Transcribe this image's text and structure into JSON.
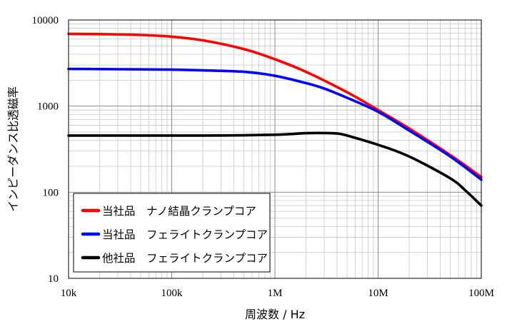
{
  "chart_data": {
    "type": "line",
    "title": "",
    "xlabel": "周波数 / Hz",
    "ylabel": "インピーダンス比透磁率",
    "xscale": "log",
    "yscale": "log",
    "xlim": [
      10000,
      100000000
    ],
    "ylim": [
      10,
      10000
    ],
    "grid": true,
    "legend_position": "bottom-left",
    "x_ticks": [
      {
        "value": 10000,
        "label": "10k"
      },
      {
        "value": 100000,
        "label": "100k"
      },
      {
        "value": 1000000,
        "label": "1M"
      },
      {
        "value": 10000000,
        "label": "10M"
      },
      {
        "value": 100000000,
        "label": "100M"
      }
    ],
    "y_ticks": [
      {
        "value": 10,
        "label": "10"
      },
      {
        "value": 100,
        "label": "100"
      },
      {
        "value": 1000,
        "label": "1000"
      },
      {
        "value": 10000,
        "label": "10000"
      }
    ],
    "series": [
      {
        "name": "当社品　ナノ結晶クランプコア",
        "color": "#ff0000",
        "points": [
          [
            10000,
            6900
          ],
          [
            20000,
            6850
          ],
          [
            50000,
            6700
          ],
          [
            100000,
            6400
          ],
          [
            200000,
            5800
          ],
          [
            500000,
            4600
          ],
          [
            1000000,
            3500
          ],
          [
            2000000,
            2500
          ],
          [
            5000000,
            1450
          ],
          [
            10000000,
            900
          ],
          [
            20000000,
            550
          ],
          [
            50000000,
            270
          ],
          [
            100000000,
            150
          ]
        ]
      },
      {
        "name": "当社品　フェライトクランプコア",
        "color": "#0000ff",
        "points": [
          [
            10000,
            2700
          ],
          [
            20000,
            2690
          ],
          [
            50000,
            2670
          ],
          [
            100000,
            2650
          ],
          [
            200000,
            2600
          ],
          [
            500000,
            2500
          ],
          [
            1000000,
            2250
          ],
          [
            2000000,
            1850
          ],
          [
            3000000,
            1600
          ],
          [
            5000000,
            1250
          ],
          [
            10000000,
            860
          ],
          [
            20000000,
            520
          ],
          [
            50000000,
            260
          ],
          [
            100000000,
            140
          ]
        ]
      },
      {
        "name": "他社品　フェライトクランプコア",
        "color": "#000000",
        "points": [
          [
            10000,
            455
          ],
          [
            50000,
            455
          ],
          [
            100000,
            455
          ],
          [
            200000,
            455
          ],
          [
            500000,
            458
          ],
          [
            1000000,
            465
          ],
          [
            1500000,
            475
          ],
          [
            2000000,
            485
          ],
          [
            3000000,
            487
          ],
          [
            4000000,
            480
          ],
          [
            5000000,
            455
          ],
          [
            10000000,
            355
          ],
          [
            20000000,
            260
          ],
          [
            50000000,
            145
          ],
          [
            70000000,
            105
          ],
          [
            100000000,
            70
          ]
        ]
      }
    ]
  }
}
